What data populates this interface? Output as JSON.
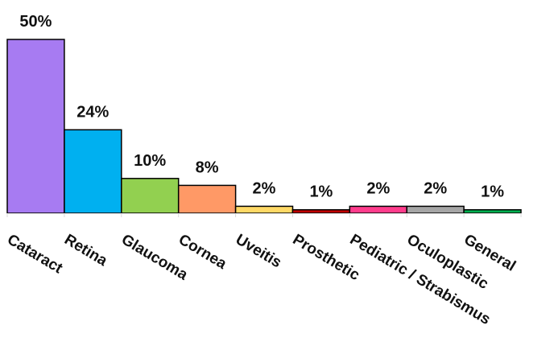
{
  "chart_data": {
    "type": "bar",
    "categories": [
      "Cataract",
      "Retina",
      "Glaucoma",
      "Cornea",
      "Uveitis",
      "Prosthetic",
      "Pediatric / Strabismus",
      "Oculoplastic",
      "General"
    ],
    "values": [
      50,
      24,
      10,
      8,
      2,
      1,
      2,
      2,
      1
    ],
    "data_labels": [
      "50%",
      "24%",
      "10%",
      "8%",
      "2%",
      "1%",
      "2%",
      "2%",
      "1%"
    ],
    "colors": [
      "#A77BF2",
      "#00B0F0",
      "#92D050",
      "#FF9966",
      "#FFD966",
      "#C00000",
      "#FF3C8C",
      "#A6A6A6",
      "#00B050"
    ],
    "title": "",
    "xlabel": "",
    "ylabel": "",
    "ylim": [
      0,
      50
    ],
    "grid": false,
    "legend": "none"
  }
}
